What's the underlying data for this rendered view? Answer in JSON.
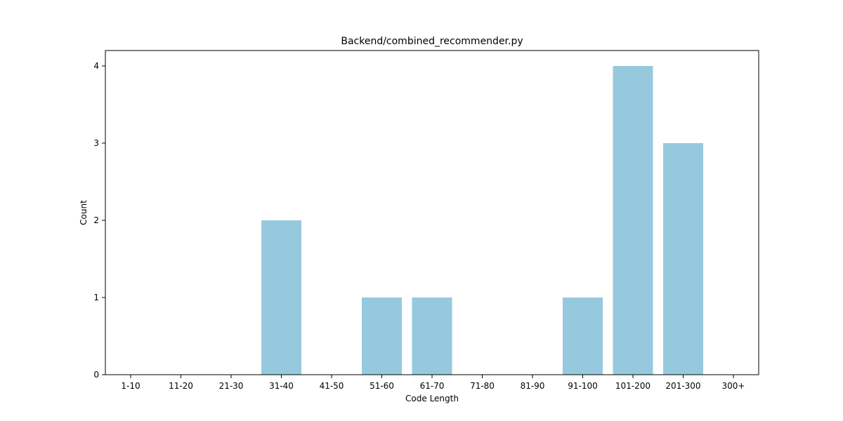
{
  "chart_data": {
    "type": "bar",
    "title": "Backend/combined_recommender.py",
    "xlabel": "Code Length",
    "ylabel": "Count",
    "categories": [
      "1-10",
      "11-20",
      "21-30",
      "31-40",
      "41-50",
      "51-60",
      "61-70",
      "71-80",
      "81-90",
      "91-100",
      "101-200",
      "201-300",
      "300+"
    ],
    "values": [
      0,
      0,
      0,
      2,
      0,
      1,
      1,
      0,
      0,
      1,
      4,
      3,
      0
    ],
    "ylim": [
      0,
      4.2
    ],
    "yticks": [
      0,
      1,
      2,
      3,
      4
    ],
    "grid": false,
    "legend": "none",
    "bar_color": "#96c9de"
  }
}
